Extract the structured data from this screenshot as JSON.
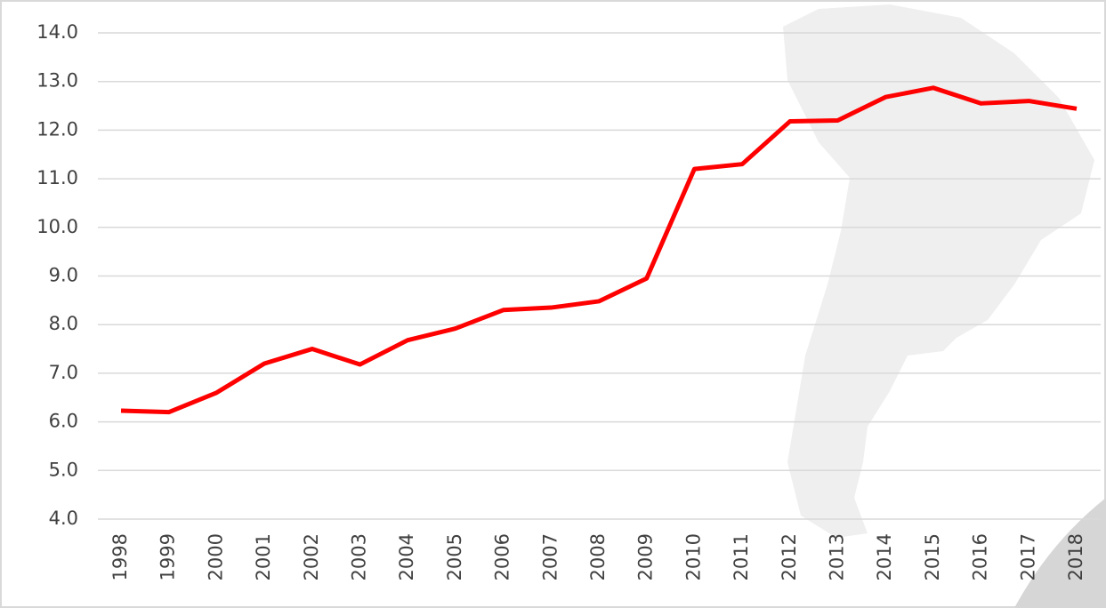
{
  "chart_data": {
    "type": "line",
    "categories": [
      "1998",
      "1999",
      "2000",
      "2001",
      "2002",
      "2003",
      "2004",
      "2005",
      "2006",
      "2007",
      "2008",
      "2009",
      "2010",
      "2011",
      "2012",
      "2013",
      "2014",
      "2015",
      "2016",
      "2017",
      "2018"
    ],
    "series": [
      {
        "color": "#ff0000",
        "values": [
          6.23,
          6.2,
          6.6,
          7.2,
          7.5,
          7.18,
          7.68,
          7.92,
          8.3,
          8.35,
          8.48,
          8.95,
          11.2,
          11.3,
          12.18,
          12.2,
          12.68,
          12.87,
          12.55,
          12.6,
          12.44
        ]
      }
    ],
    "ylim": [
      4,
      14
    ],
    "yticks": [
      {
        "value": 4,
        "label": "4.0"
      },
      {
        "value": 5,
        "label": "5.0"
      },
      {
        "value": 6,
        "label": "6.0"
      },
      {
        "value": 7,
        "label": "7.0"
      },
      {
        "value": 8,
        "label": "8.0"
      },
      {
        "value": 9,
        "label": "9.0"
      },
      {
        "value": 10,
        "label": "10.0"
      },
      {
        "value": 11,
        "label": "11.0"
      },
      {
        "value": 12,
        "label": "12.0"
      },
      {
        "value": 13,
        "label": "13.0"
      },
      {
        "value": 14,
        "label": "14.0"
      }
    ],
    "grid": true
  }
}
